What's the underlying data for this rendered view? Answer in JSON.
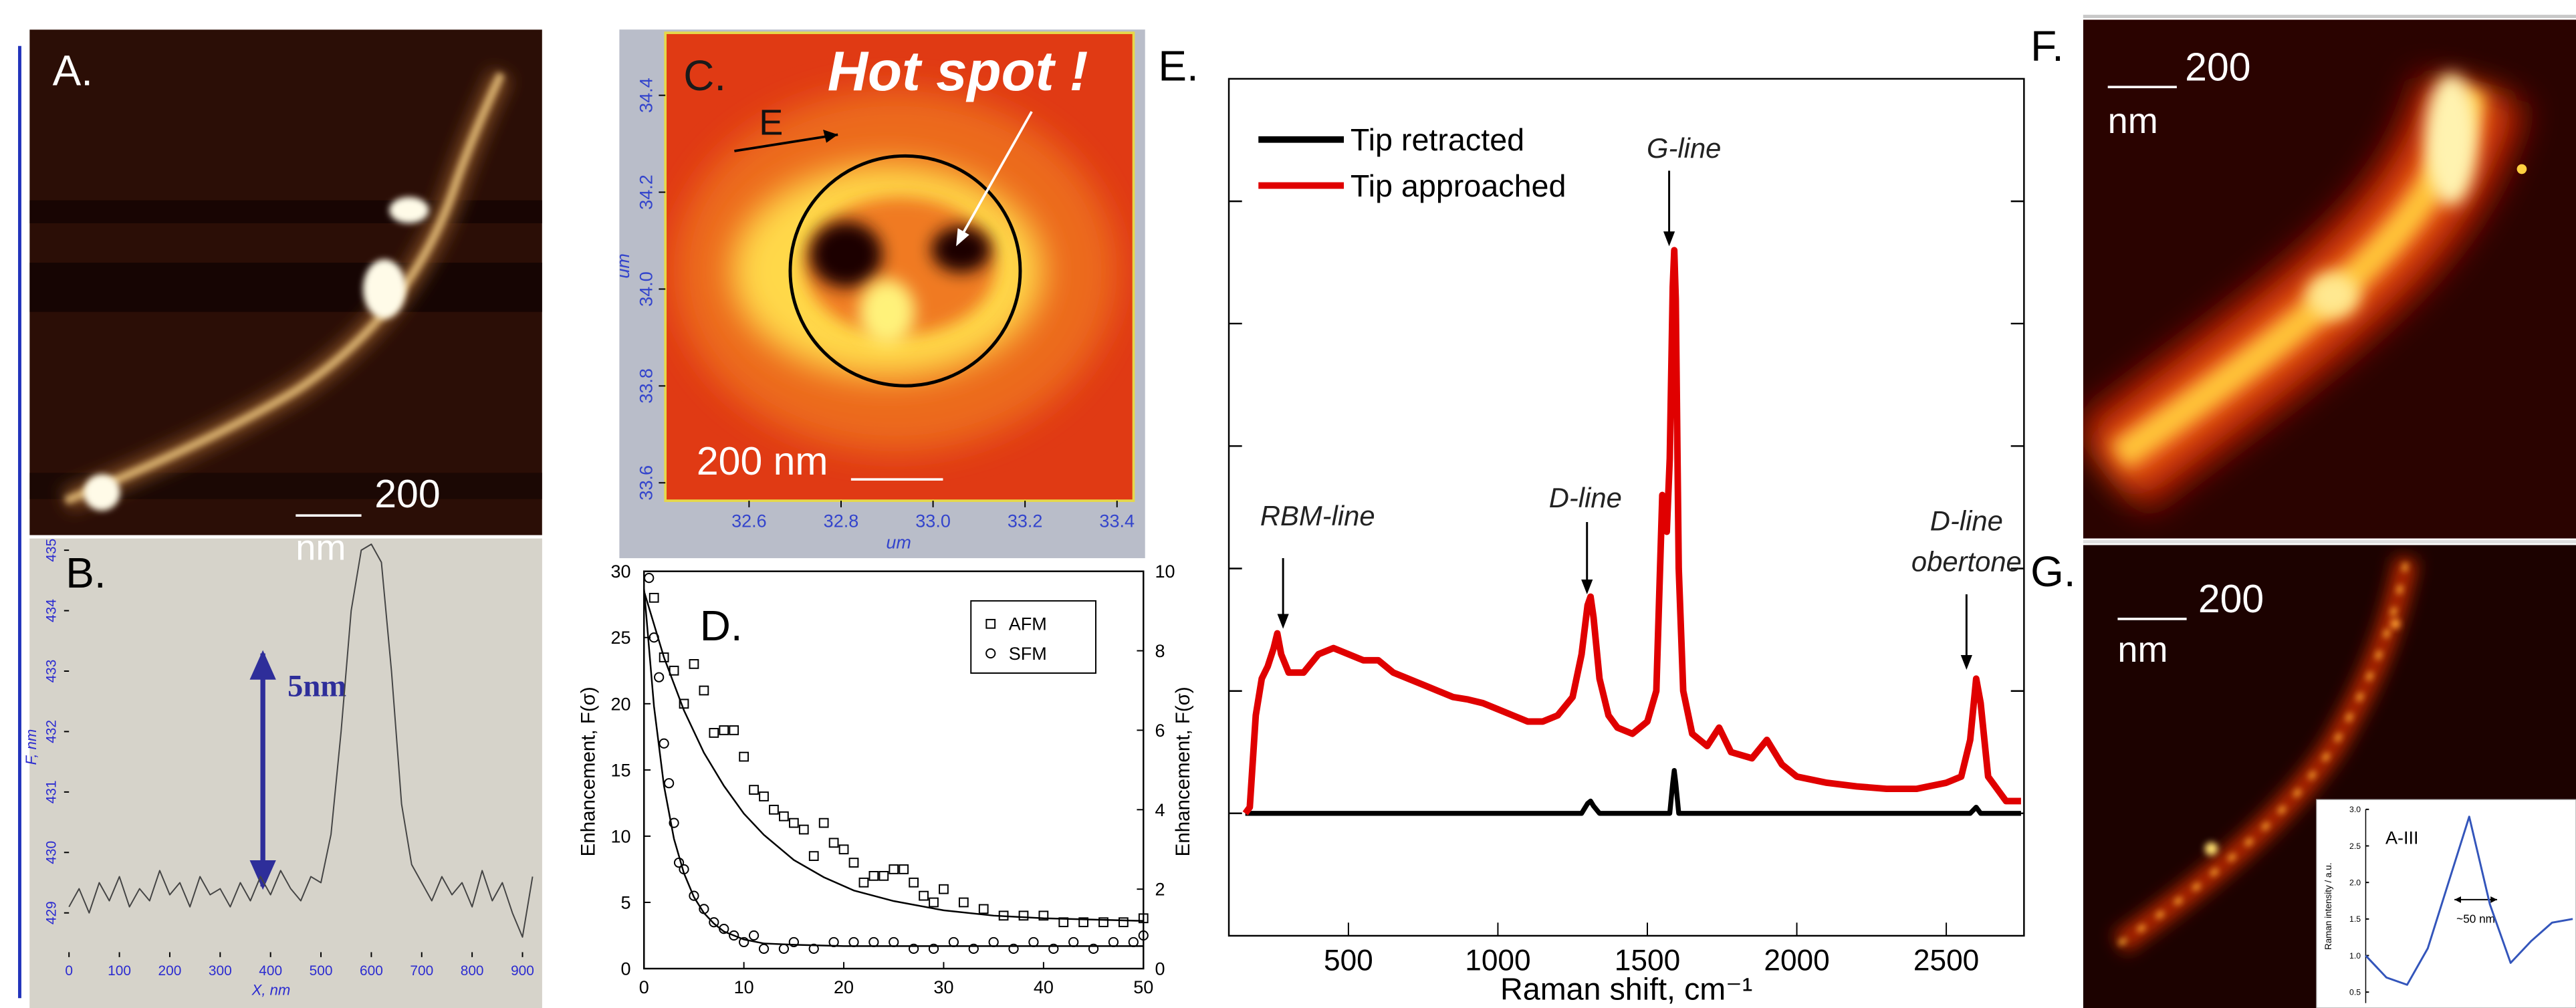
{
  "panels": [
    {
      "label": "A.",
      "scale_bar": [
        "200",
        "nm"
      ]
    },
    {
      "label": "F.",
      "scale_bar": [
        "200",
        "nm"
      ]
    },
    {
      "label": "G.",
      "scale_bar": [
        "200",
        "nm"
      ]
    }
  ],
  "chart_data": [
    {
      "type": "line",
      "label": "B.",
      "xlabel": "X, nm",
      "ylabel": "F, nm",
      "annotations": [
        "5nm"
      ],
      "xlim": [
        0,
        939
      ],
      "ylim": [
        428.35,
        435.14
      ],
      "xticks": [
        0,
        100,
        200,
        300,
        400,
        500,
        600,
        700,
        800,
        900
      ],
      "yticks": [
        429,
        430,
        431,
        432,
        433,
        434,
        435
      ],
      "x": [
        0,
        20,
        40,
        60,
        80,
        100,
        120,
        140,
        160,
        180,
        200,
        220,
        240,
        260,
        280,
        300,
        320,
        340,
        360,
        380,
        400,
        420,
        440,
        460,
        480,
        500,
        520,
        540,
        560,
        580,
        600,
        620,
        640,
        660,
        680,
        700,
        720,
        740,
        760,
        780,
        800,
        820,
        840,
        860,
        880,
        900,
        920
      ],
      "series": [
        {
          "color": "#444444",
          "values": [
            429.1,
            429.4,
            429.0,
            429.5,
            429.2,
            429.6,
            429.1,
            429.4,
            429.2,
            429.7,
            429.3,
            429.5,
            429.1,
            429.6,
            429.3,
            429.4,
            429.1,
            429.5,
            429.2,
            429.6,
            429.3,
            429.7,
            429.4,
            429.2,
            429.6,
            429.5,
            430.3,
            432.0,
            434.0,
            435.0,
            435.1,
            434.8,
            433.0,
            430.8,
            429.8,
            429.5,
            429.2,
            429.6,
            429.3,
            429.5,
            429.1,
            429.7,
            429.2,
            429.5,
            429.0,
            428.6,
            429.6
          ]
        }
      ]
    },
    {
      "type": "image",
      "label": "C.",
      "xlabel": "um",
      "ylabel": "um",
      "annotations": [
        "Hot spot !",
        "E",
        "200 nm"
      ],
      "xlim": [
        32.418,
        33.436
      ],
      "ylim": [
        33.563,
        34.529
      ],
      "xticks": [
        32.6,
        32.8,
        {
          "value": 33.0,
          "label": "33.0"
        },
        33.2,
        33.4
      ],
      "yticks": [
        33.6,
        33.8,
        {
          "value": 34.0,
          "label": "34.0"
        },
        34.2,
        34.4
      ]
    },
    {
      "type": "scatter",
      "label": "D.",
      "ylabel": "Enhancement, F(σ)",
      "y2label": "Enhancement, F(σ)",
      "xlim": [
        0,
        50
      ],
      "ylim": [
        0,
        30
      ],
      "y2lim": [
        0,
        10
      ],
      "xticks": [
        0,
        10,
        20,
        30,
        40,
        50
      ],
      "yticks": [
        0,
        5,
        10,
        15,
        20,
        25,
        30
      ],
      "y2ticks": [
        0,
        2,
        4,
        6,
        8,
        10
      ],
      "series": [
        {
          "name": "AFM",
          "style": "square",
          "color": "#000000",
          "x": [
            1,
            2,
            3,
            4,
            5,
            6,
            7,
            8,
            9,
            10,
            11,
            12,
            13,
            14,
            15,
            16,
            17,
            18,
            19,
            20,
            21,
            22,
            23,
            24,
            25,
            26,
            27,
            28,
            29,
            30,
            32,
            34,
            36,
            38,
            40,
            42,
            44,
            46,
            48,
            50
          ],
          "values": [
            28,
            23.5,
            22.5,
            20,
            23,
            21,
            17.8,
            18,
            18,
            16,
            13.5,
            13,
            12,
            11.5,
            11,
            10.5,
            8.5,
            11,
            9.5,
            9,
            8,
            6.5,
            7,
            7,
            7.5,
            7.5,
            6.5,
            5.5,
            5,
            6,
            5,
            4.5,
            4,
            4,
            4,
            3.5,
            3.5,
            3.5,
            3.5,
            3.8
          ]
        },
        {
          "name": "SFM",
          "style": "circle",
          "color": "#000000",
          "x": [
            0.5,
            1,
            1.5,
            2,
            2.5,
            3,
            3.5,
            4,
            5,
            6,
            7,
            8,
            9,
            10,
            11,
            12,
            14,
            15,
            17,
            19,
            21,
            23,
            25,
            27,
            29,
            31,
            33,
            35,
            37,
            39,
            41,
            43,
            45,
            47,
            49,
            50
          ],
          "values": [
            29.5,
            25,
            22,
            17,
            14,
            11,
            8,
            7.5,
            5.5,
            4.5,
            3.5,
            3,
            2.5,
            2,
            2.5,
            1.5,
            1.5,
            2,
            1.5,
            2,
            2,
            2,
            2,
            1.5,
            1.5,
            2,
            1.5,
            2,
            1.5,
            2,
            1.5,
            2,
            1.5,
            2,
            2,
            2.5
          ]
        },
        {
          "style": "line",
          "color": "#000000",
          "x": [
            0,
            2,
            4,
            6,
            8,
            10,
            12,
            15,
            18,
            21,
            25,
            30,
            35,
            40,
            45,
            50
          ],
          "values": [
            28.5,
            23.5,
            19.5,
            16.3,
            13.8,
            11.7,
            10.1,
            8.2,
            6.9,
            5.9,
            5.1,
            4.4,
            4.0,
            3.8,
            3.7,
            3.6
          ]
        },
        {
          "style": "line",
          "color": "#000000",
          "x": [
            0,
            1,
            2,
            3,
            4,
            5,
            6,
            7,
            8,
            10,
            12,
            15,
            20,
            30,
            40,
            50
          ],
          "values": [
            28.7,
            19.8,
            13.8,
            9.8,
            7.2,
            5.4,
            4.2,
            3.4,
            2.8,
            2.2,
            1.9,
            1.8,
            1.7,
            1.7,
            1.7,
            1.7
          ]
        }
      ]
    },
    {
      "type": "line",
      "label": "E.",
      "xlabel": "Raman shift, cm⁻¹",
      "annotations": [
        "RBM-line",
        "D-line",
        "G-line",
        "D-line",
        "obertone"
      ],
      "xlim": [
        100,
        2760
      ],
      "ylim": [
        0,
        7
      ],
      "xticks": [
        500,
        1000,
        1500,
        2000,
        2500
      ],
      "x": [
        155,
        170,
        190,
        210,
        230,
        250,
        262,
        275,
        300,
        350,
        400,
        450,
        500,
        550,
        600,
        650,
        700,
        750,
        800,
        850,
        900,
        950,
        1000,
        1050,
        1100,
        1150,
        1200,
        1250,
        1280,
        1300,
        1310,
        1320,
        1340,
        1370,
        1400,
        1450,
        1500,
        1530,
        1550,
        1565,
        1575,
        1585,
        1590,
        1595,
        1605,
        1620,
        1650,
        1700,
        1740,
        1780,
        1850,
        1900,
        1950,
        2000,
        2100,
        2200,
        2300,
        2400,
        2500,
        2550,
        2580,
        2600,
        2615,
        2640,
        2700,
        2750
      ],
      "series": [
        {
          "name": "Tip retracted",
          "color": "#000000",
          "values": [
            1,
            1,
            1,
            1,
            1,
            1,
            1,
            1,
            1,
            1,
            1,
            1,
            1,
            1,
            1,
            1,
            1,
            1,
            1,
            1,
            1,
            1,
            1,
            1,
            1,
            1,
            1,
            1,
            1,
            1.08,
            1.1,
            1.06,
            1,
            1,
            1,
            1,
            1,
            1,
            1,
            1,
            1,
            1.25,
            1.35,
            1.25,
            1,
            1,
            1,
            1,
            1,
            1,
            1,
            1,
            1,
            1,
            1,
            1,
            1,
            1,
            1,
            1,
            1,
            1.05,
            1,
            1,
            1,
            1
          ]
        },
        {
          "name": "Tip approached",
          "color": "#e00000",
          "values": [
            1.0,
            1.05,
            1.8,
            2.1,
            2.2,
            2.35,
            2.47,
            2.3,
            2.15,
            2.15,
            2.3,
            2.35,
            2.3,
            2.25,
            2.25,
            2.15,
            2.1,
            2.05,
            2.0,
            1.95,
            1.93,
            1.9,
            1.85,
            1.8,
            1.75,
            1.75,
            1.8,
            1.95,
            2.3,
            2.7,
            2.77,
            2.6,
            2.1,
            1.8,
            1.7,
            1.65,
            1.75,
            2.0,
            3.6,
            3.3,
            3.9,
            5.3,
            5.6,
            5.2,
            3.0,
            2.0,
            1.65,
            1.55,
            1.7,
            1.5,
            1.45,
            1.6,
            1.4,
            1.3,
            1.25,
            1.22,
            1.2,
            1.2,
            1.25,
            1.3,
            1.6,
            2.1,
            1.9,
            1.3,
            1.1,
            1.1
          ]
        }
      ]
    },
    {
      "type": "line",
      "title": "A-III",
      "ylabel": "Raman intensity / a.u.",
      "annotations": [
        "~50 nm"
      ],
      "ylim": [
        0.35,
        3.0
      ],
      "yticks": [
        {
          "value": 0.5,
          "label": "0.5"
        },
        {
          "value": 1.0,
          "label": "1.0"
        },
        {
          "value": 1.5,
          "label": "1.5"
        },
        {
          "value": 2.0,
          "label": "2.0"
        },
        {
          "value": 2.5,
          "label": "2.5"
        },
        {
          "value": 3.0,
          "label": "3.0"
        }
      ],
      "categories": [
        null,
        null,
        null,
        null,
        null,
        null,
        null,
        null,
        null,
        null,
        null
      ],
      "series": [
        {
          "color": "#3355bb",
          "values": [
            1.0,
            0.7,
            0.6,
            1.1,
            2.0,
            2.9,
            1.7,
            0.9,
            1.2,
            1.45,
            1.5
          ]
        }
      ]
    }
  ]
}
